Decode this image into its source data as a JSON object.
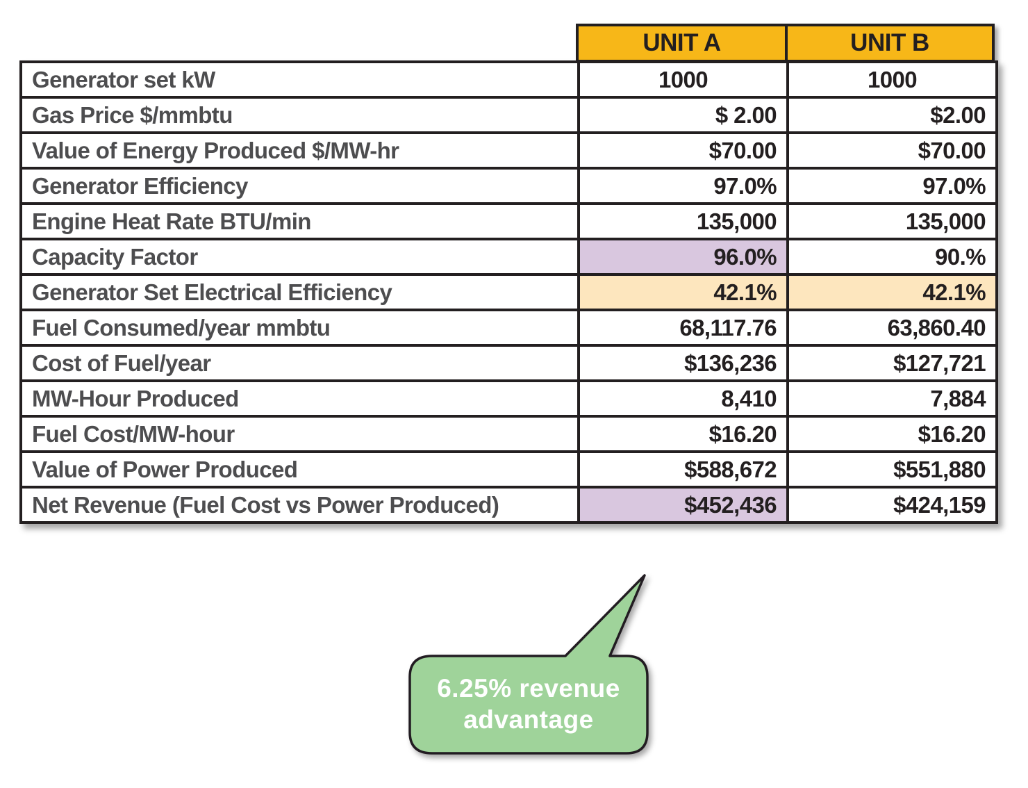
{
  "header": {
    "unit_a": "UNIT A",
    "unit_b": "UNIT B"
  },
  "rows": [
    {
      "label": "Generator set kW",
      "a": "1000",
      "b": "1000"
    },
    {
      "label": "Gas Price $/mmbtu",
      "a": "$ 2.00",
      "b": "$2.00"
    },
    {
      "label": "Value of Energy Produced $/MW-hr",
      "a": "$70.00",
      "b": "$70.00"
    },
    {
      "label": "Generator Efficiency",
      "a": "97.0%",
      "b": "97.0%"
    },
    {
      "label": "Engine Heat Rate BTU/min",
      "a": "135,000",
      "b": "135,000"
    },
    {
      "label": "Capacity Factor",
      "a": "96.0%",
      "b": "90.%"
    },
    {
      "label": "Generator Set Electrical Efficiency",
      "a": "42.1%",
      "b": "42.1%"
    },
    {
      "label": "Fuel Consumed/year mmbtu",
      "a": "68,117.76",
      "b": "63,860.40"
    },
    {
      "label": "Cost of Fuel/year",
      "a": "$136,236",
      "b": "$127,721"
    },
    {
      "label": "MW-Hour Produced",
      "a": "8,410",
      "b": "7,884"
    },
    {
      "label": "Fuel Cost/MW-hour",
      "a": "$16.20",
      "b": "$16.20"
    },
    {
      "label": "Value of Power Produced",
      "a": "$588,672",
      "b": "$551,880"
    },
    {
      "label": "Net Revenue (Fuel Cost vs Power Produced)",
      "a": "$452,436",
      "b": "$424,159"
    }
  ],
  "callout": {
    "line1": "6.25% revenue",
    "line2": "advantage"
  },
  "colors": {
    "header": "#f7b718",
    "highlight_purple": "#d9c7df",
    "highlight_cream": "#fde6be",
    "callout_fill": "#9fd39a",
    "border": "#231f20"
  }
}
